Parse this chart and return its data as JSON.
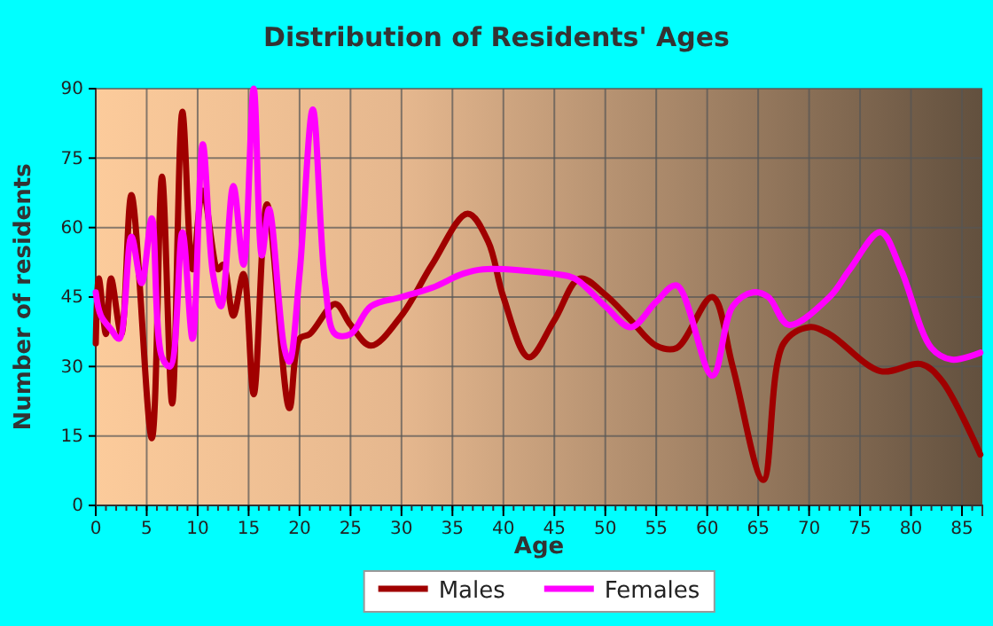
{
  "chart_data": {
    "type": "line",
    "title": "Distribution of Residents' Ages",
    "xlabel": "Age",
    "ylabel": "Number of residents",
    "xlim": [
      0,
      87
    ],
    "xticks": [
      0,
      5,
      10,
      15,
      20,
      25,
      30,
      35,
      40,
      45,
      50,
      55,
      60,
      65,
      70,
      75,
      80,
      85
    ],
    "ylim": [
      0,
      90
    ],
    "yticks": [
      0,
      15,
      30,
      45,
      60,
      75,
      90
    ],
    "grid": true,
    "legend": "bottom",
    "marker": "none",
    "line_style": "solid",
    "series": [
      {
        "name": "Males",
        "color": "#a00000",
        "x": [
          0,
          0.3,
          1,
          1.5,
          2.5,
          3.5,
          5.5,
          6.5,
          7.5,
          8.5,
          9.5,
          10.5,
          12,
          12.5,
          13.5,
          14.5,
          15.5,
          16.8,
          19,
          20,
          21,
          23.5,
          25,
          27,
          30,
          33,
          36.5,
          38.5,
          40,
          42.5,
          45,
          47.5,
          50,
          52.5,
          55,
          57,
          60.5,
          62.5,
          65.5,
          67.5,
          70,
          72,
          77,
          81,
          83,
          86.8
        ],
        "values": [
          35,
          49,
          37,
          49,
          37,
          67,
          14.5,
          71,
          22,
          85,
          51,
          68,
          51,
          52,
          41,
          50,
          24,
          65,
          21,
          36,
          37,
          43.5,
          39,
          34.5,
          41,
          52,
          63,
          57,
          45,
          32,
          40,
          49,
          45.5,
          40,
          34.5,
          34,
          45,
          30,
          5.5,
          35,
          38.5,
          37,
          29,
          30.5,
          27,
          11
        ]
      },
      {
        "name": "Females",
        "color": "#ff00ff",
        "x": [
          0,
          0.5,
          1.5,
          2.3,
          3.5,
          4.5,
          5.5,
          6.5,
          7.3,
          8.5,
          9.5,
          10.5,
          11.5,
          12.3,
          13.5,
          14.5,
          15.5,
          16.3,
          17,
          18.5,
          19,
          20,
          21.3,
          22.5,
          23.5,
          25,
          27,
          30,
          33,
          36,
          38,
          45,
          47,
          50,
          52.5,
          55,
          57,
          60.5,
          62.5,
          64.5,
          66,
          68,
          72,
          74,
          77,
          79,
          82,
          84,
          86.8
        ],
        "values": [
          46,
          41,
          38,
          36,
          58,
          48,
          62,
          32,
          30,
          59,
          36,
          78,
          50,
          43,
          69,
          52,
          90,
          54,
          64,
          34,
          31,
          50,
          85.5,
          48,
          37,
          37,
          43,
          45,
          47,
          50,
          51,
          50,
          49,
          43,
          38.5,
          44,
          47.5,
          28,
          43,
          46,
          45,
          39,
          45,
          51,
          59,
          51,
          34,
          31.5,
          33
        ]
      }
    ]
  }
}
